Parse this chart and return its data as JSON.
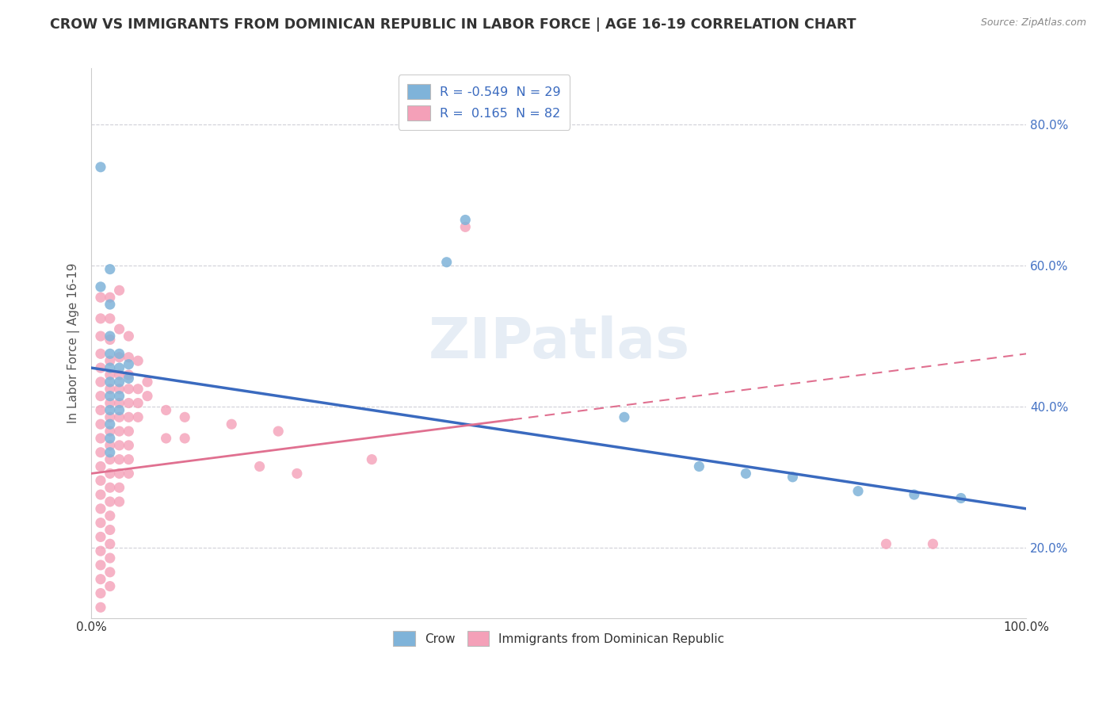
{
  "title": "CROW VS IMMIGRANTS FROM DOMINICAN REPUBLIC IN LABOR FORCE | AGE 16-19 CORRELATION CHART",
  "source": "Source: ZipAtlas.com",
  "ylabel": "In Labor Force | Age 16-19",
  "xlim": [
    0.0,
    1.0
  ],
  "ylim": [
    0.1,
    0.88
  ],
  "y_ticks": [
    0.2,
    0.4,
    0.6,
    0.8
  ],
  "y_tick_labels": [
    "20.0%",
    "40.0%",
    "60.0%",
    "80.0%"
  ],
  "x_ticks": [
    0.0,
    0.2,
    0.4,
    0.6,
    0.8,
    1.0
  ],
  "x_tick_labels": [
    "0.0%",
    "",
    "",
    "",
    "",
    "100.0%"
  ],
  "watermark": "ZIPatlas",
  "crow_color": "#7fb3d9",
  "imm_color": "#f4a0b8",
  "crow_line_color": "#3a6abf",
  "imm_line_color": "#e07090",
  "background_color": "#ffffff",
  "grid_color": "#d0d0d8",
  "crow_points": [
    [
      0.01,
      0.74
    ],
    [
      0.01,
      0.57
    ],
    [
      0.02,
      0.595
    ],
    [
      0.02,
      0.545
    ],
    [
      0.02,
      0.5
    ],
    [
      0.02,
      0.475
    ],
    [
      0.02,
      0.455
    ],
    [
      0.02,
      0.435
    ],
    [
      0.02,
      0.415
    ],
    [
      0.02,
      0.395
    ],
    [
      0.02,
      0.375
    ],
    [
      0.02,
      0.355
    ],
    [
      0.02,
      0.335
    ],
    [
      0.03,
      0.475
    ],
    [
      0.03,
      0.455
    ],
    [
      0.03,
      0.435
    ],
    [
      0.03,
      0.415
    ],
    [
      0.03,
      0.395
    ],
    [
      0.04,
      0.46
    ],
    [
      0.04,
      0.44
    ],
    [
      0.38,
      0.605
    ],
    [
      0.4,
      0.665
    ],
    [
      0.57,
      0.385
    ],
    [
      0.65,
      0.315
    ],
    [
      0.7,
      0.305
    ],
    [
      0.75,
      0.3
    ],
    [
      0.82,
      0.28
    ],
    [
      0.88,
      0.275
    ],
    [
      0.93,
      0.27
    ]
  ],
  "imm_points": [
    [
      0.01,
      0.555
    ],
    [
      0.01,
      0.525
    ],
    [
      0.01,
      0.5
    ],
    [
      0.01,
      0.475
    ],
    [
      0.01,
      0.455
    ],
    [
      0.01,
      0.435
    ],
    [
      0.01,
      0.415
    ],
    [
      0.01,
      0.395
    ],
    [
      0.01,
      0.375
    ],
    [
      0.01,
      0.355
    ],
    [
      0.01,
      0.335
    ],
    [
      0.01,
      0.315
    ],
    [
      0.01,
      0.295
    ],
    [
      0.01,
      0.275
    ],
    [
      0.01,
      0.255
    ],
    [
      0.01,
      0.235
    ],
    [
      0.01,
      0.215
    ],
    [
      0.01,
      0.195
    ],
    [
      0.01,
      0.175
    ],
    [
      0.01,
      0.155
    ],
    [
      0.01,
      0.135
    ],
    [
      0.01,
      0.115
    ],
    [
      0.02,
      0.555
    ],
    [
      0.02,
      0.525
    ],
    [
      0.02,
      0.495
    ],
    [
      0.02,
      0.465
    ],
    [
      0.02,
      0.445
    ],
    [
      0.02,
      0.425
    ],
    [
      0.02,
      0.405
    ],
    [
      0.02,
      0.385
    ],
    [
      0.02,
      0.365
    ],
    [
      0.02,
      0.345
    ],
    [
      0.02,
      0.325
    ],
    [
      0.02,
      0.305
    ],
    [
      0.02,
      0.285
    ],
    [
      0.02,
      0.265
    ],
    [
      0.02,
      0.245
    ],
    [
      0.02,
      0.225
    ],
    [
      0.02,
      0.205
    ],
    [
      0.02,
      0.185
    ],
    [
      0.02,
      0.165
    ],
    [
      0.02,
      0.145
    ],
    [
      0.03,
      0.565
    ],
    [
      0.03,
      0.51
    ],
    [
      0.03,
      0.47
    ],
    [
      0.03,
      0.445
    ],
    [
      0.03,
      0.425
    ],
    [
      0.03,
      0.405
    ],
    [
      0.03,
      0.385
    ],
    [
      0.03,
      0.365
    ],
    [
      0.03,
      0.345
    ],
    [
      0.03,
      0.325
    ],
    [
      0.03,
      0.305
    ],
    [
      0.03,
      0.285
    ],
    [
      0.03,
      0.265
    ],
    [
      0.04,
      0.5
    ],
    [
      0.04,
      0.47
    ],
    [
      0.04,
      0.445
    ],
    [
      0.04,
      0.425
    ],
    [
      0.04,
      0.405
    ],
    [
      0.04,
      0.385
    ],
    [
      0.04,
      0.365
    ],
    [
      0.04,
      0.345
    ],
    [
      0.04,
      0.325
    ],
    [
      0.04,
      0.305
    ],
    [
      0.05,
      0.465
    ],
    [
      0.05,
      0.425
    ],
    [
      0.05,
      0.405
    ],
    [
      0.05,
      0.385
    ],
    [
      0.06,
      0.435
    ],
    [
      0.06,
      0.415
    ],
    [
      0.08,
      0.395
    ],
    [
      0.08,
      0.355
    ],
    [
      0.1,
      0.385
    ],
    [
      0.1,
      0.355
    ],
    [
      0.15,
      0.375
    ],
    [
      0.18,
      0.315
    ],
    [
      0.2,
      0.365
    ],
    [
      0.22,
      0.305
    ],
    [
      0.3,
      0.325
    ],
    [
      0.4,
      0.655
    ],
    [
      0.85,
      0.205
    ],
    [
      0.9,
      0.205
    ]
  ]
}
